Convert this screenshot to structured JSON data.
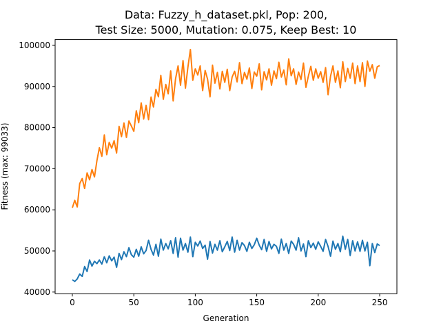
{
  "chart_data": {
    "type": "line",
    "title": {
      "line1": "Data: Fuzzy_h_dataset.pkl, Pop: 200,",
      "line2": "Test Size: 5000, Mutation: 0.075, Keep Best: 10"
    },
    "xlabel": "Generation",
    "ylabel": "Fitness (max: 99033)",
    "xlim": [
      -14,
      264
    ],
    "ylim": [
      39600,
      101400
    ],
    "xticks": [
      0,
      50,
      100,
      150,
      200,
      250
    ],
    "yticks": [
      40000,
      50000,
      60000,
      70000,
      80000,
      90000,
      100000
    ],
    "grid": false,
    "legend": "none",
    "series": [
      {
        "color": "#1f77b4",
        "x": [
          0,
          2,
          4,
          6,
          8,
          10,
          12,
          14,
          16,
          18,
          20,
          22,
          24,
          26,
          28,
          30,
          32,
          34,
          36,
          38,
          40,
          42,
          44,
          46,
          48,
          50,
          52,
          54,
          56,
          58,
          60,
          62,
          64,
          66,
          68,
          70,
          72,
          74,
          76,
          78,
          80,
          82,
          84,
          86,
          88,
          90,
          92,
          94,
          96,
          98,
          100,
          102,
          104,
          106,
          108,
          110,
          112,
          114,
          116,
          118,
          120,
          122,
          124,
          126,
          128,
          130,
          132,
          134,
          136,
          138,
          140,
          142,
          144,
          146,
          148,
          150,
          152,
          154,
          156,
          158,
          160,
          162,
          164,
          166,
          168,
          170,
          172,
          174,
          176,
          178,
          180,
          182,
          184,
          186,
          188,
          190,
          192,
          194,
          196,
          198,
          200,
          202,
          204,
          206,
          208,
          210,
          212,
          214,
          216,
          218,
          220,
          222,
          224,
          226,
          228,
          230,
          232,
          234,
          236,
          238,
          240,
          242,
          244,
          246,
          248,
          250
        ],
        "values": [
          43000,
          42600,
          43200,
          44400,
          43800,
          46200,
          45000,
          47800,
          46300,
          47500,
          46900,
          47800,
          46800,
          48600,
          47100,
          48800,
          47600,
          48500,
          46000,
          49400,
          47900,
          49800,
          48600,
          50800,
          49100,
          48500,
          50400,
          48700,
          51000,
          49300,
          50100,
          52600,
          50400,
          49000,
          51600,
          48700,
          52900,
          50200,
          51800,
          50500,
          52500,
          49400,
          53200,
          48500,
          53100,
          50200,
          51800,
          49700,
          53400,
          48600,
          52100,
          51200,
          52400,
          50600,
          51400,
          48000,
          52300,
          49500,
          51600,
          50200,
          52500,
          49800,
          51000,
          52300,
          50100,
          53400,
          49700,
          52600,
          50200,
          52000,
          51300,
          49900,
          52100,
          50600,
          51500,
          53100,
          51400,
          50300,
          52800,
          49900,
          52300,
          50500,
          51600,
          51100,
          49400,
          52900,
          50200,
          51800,
          49400,
          52400,
          51600,
          50200,
          53200,
          50000,
          51700,
          48600,
          52500,
          50800,
          51900,
          50400,
          52200,
          51100,
          49900,
          52800,
          51100,
          48700,
          52400,
          50400,
          51800,
          49800,
          53600,
          50400,
          52800,
          48900,
          52500,
          50000,
          52200,
          49900,
          52600,
          50000,
          52100,
          46400,
          51800,
          49600,
          51700,
          51300
        ]
      },
      {
        "color": "#ff7f0e",
        "x": [
          0,
          2,
          4,
          6,
          8,
          10,
          12,
          14,
          16,
          18,
          20,
          22,
          24,
          26,
          28,
          30,
          32,
          34,
          36,
          38,
          40,
          42,
          44,
          46,
          48,
          50,
          52,
          54,
          56,
          58,
          60,
          62,
          64,
          66,
          68,
          70,
          72,
          74,
          76,
          78,
          80,
          82,
          84,
          86,
          88,
          90,
          92,
          94,
          96,
          98,
          100,
          102,
          104,
          106,
          108,
          110,
          112,
          114,
          116,
          118,
          120,
          122,
          124,
          126,
          128,
          130,
          132,
          134,
          136,
          138,
          140,
          142,
          144,
          146,
          148,
          150,
          152,
          154,
          156,
          158,
          160,
          162,
          164,
          166,
          168,
          170,
          172,
          174,
          176,
          178,
          180,
          182,
          184,
          186,
          188,
          190,
          192,
          194,
          196,
          198,
          200,
          202,
          204,
          206,
          208,
          210,
          212,
          214,
          216,
          218,
          220,
          222,
          224,
          226,
          228,
          230,
          232,
          234,
          236,
          238,
          240,
          242,
          244,
          246,
          248,
          250
        ],
        "values": [
          60500,
          62300,
          60700,
          66400,
          67600,
          65200,
          69000,
          67300,
          69800,
          68000,
          72000,
          75100,
          73000,
          78200,
          73400,
          76400,
          75000,
          76800,
          73800,
          80300,
          77800,
          81100,
          77600,
          81600,
          80400,
          79100,
          84100,
          81200,
          86000,
          82100,
          85400,
          81900,
          87400,
          85000,
          89300,
          87500,
          92700,
          86900,
          90500,
          88200,
          93800,
          86500,
          91900,
          95000,
          90300,
          96300,
          89600,
          94700,
          99000,
          91500,
          94300,
          92800,
          95000,
          89000,
          93900,
          91800,
          87500,
          95200,
          90800,
          93400,
          89400,
          93700,
          91000,
          94200,
          89000,
          92300,
          93700,
          91100,
          95800,
          90700,
          93400,
          91800,
          94500,
          89500,
          93500,
          92500,
          95500,
          89200,
          93600,
          91600,
          94300,
          90300,
          93800,
          91900,
          95900,
          92300,
          94000,
          90400,
          96700,
          92600,
          94300,
          90500,
          93500,
          91700,
          95700,
          89800,
          92500,
          94900,
          91500,
          94300,
          92000,
          93600,
          91000,
          94600,
          88000,
          92500,
          95000,
          91000,
          93800,
          89700,
          96000,
          91200,
          94400,
          92000,
          95700,
          90700,
          95000,
          91200,
          95800,
          90000,
          96200,
          93700,
          95300,
          92000,
          94800,
          95100
        ]
      }
    ]
  }
}
